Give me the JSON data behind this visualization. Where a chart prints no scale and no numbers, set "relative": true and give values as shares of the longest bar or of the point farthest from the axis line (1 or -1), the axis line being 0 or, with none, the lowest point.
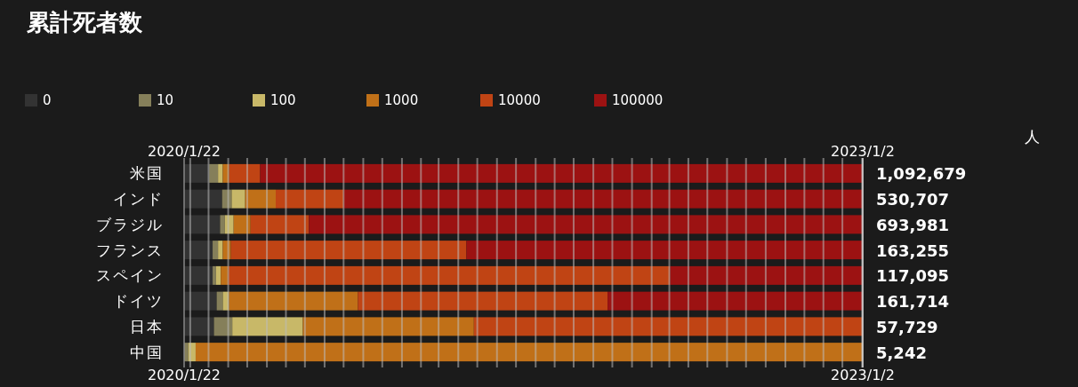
{
  "chart_data": {
    "type": "bar",
    "orientation": "horizontal",
    "stacked": true,
    "relative": true,
    "title": "累計死者数",
    "categories": [
      "米国",
      "インド",
      "ブラジル",
      "フランス",
      "スペイン",
      "ドイツ",
      "日本",
      "中国"
    ],
    "series": [
      {
        "name": "0",
        "color": "#333333",
        "values": [
          0.037,
          0.056,
          0.053,
          0.042,
          0.042,
          0.048,
          0.044,
          0
        ]
      },
      {
        "name": "10",
        "color": "#857f5a",
        "values": [
          0.013,
          0.014,
          0.007,
          0.008,
          0.005,
          0.009,
          0.027,
          0.006
        ]
      },
      {
        "name": "100",
        "color": "#c8b868",
        "values": [
          0.007,
          0.02,
          0.013,
          0.007,
          0.007,
          0.009,
          0.104,
          0.011
        ]
      },
      {
        "name": "1000",
        "color": "#c07018",
        "values": [
          0.009,
          0.045,
          0.025,
          0.012,
          0.011,
          0.19,
          0.252,
          0.983
        ]
      },
      {
        "name": "10000",
        "color": "#c04414",
        "values": [
          0.046,
          0.1,
          0.086,
          0.347,
          0.651,
          0.368,
          0.573,
          0
        ]
      },
      {
        "name": "100000",
        "color": "#9c1212",
        "values": [
          0.888,
          0.765,
          0.816,
          0.584,
          0.284,
          0.376,
          0,
          0
        ]
      }
    ],
    "annotations": [
      "1,092,679",
      "530,707",
      "693,981",
      "163,255",
      "117,095",
      "161,714",
      "57,729",
      "5,242",
      "人",
      "2020/1/22",
      "2023/1/2",
      "2020/1/22",
      "2023/1/2"
    ],
    "ref_lines": [
      {
        "axis": "x",
        "value": 0.009,
        "color": "#bbbbbb"
      },
      {
        "axis": "x",
        "value": 0.036,
        "color": "#bbbbbb"
      },
      {
        "axis": "x",
        "value": 0.065,
        "color": "#bbbbbb"
      },
      {
        "axis": "x",
        "value": 0.093,
        "color": "#bbbbbb"
      },
      {
        "axis": "x",
        "value": 0.122,
        "color": "#bbbbbb"
      },
      {
        "axis": "x",
        "value": 0.15,
        "color": "#bbbbbb"
      },
      {
        "axis": "x",
        "value": 0.178,
        "color": "#bbbbbb"
      },
      {
        "axis": "x",
        "value": 0.207,
        "color": "#bbbbbb"
      },
      {
        "axis": "x",
        "value": 0.235,
        "color": "#bbbbbb"
      },
      {
        "axis": "x",
        "value": 0.264,
        "color": "#bbbbbb"
      },
      {
        "axis": "x",
        "value": 0.292,
        "color": "#bbbbbb"
      },
      {
        "axis": "x",
        "value": 0.321,
        "color": "#bbbbbb"
      },
      {
        "axis": "x",
        "value": 0.349,
        "color": "#bbbbbb"
      },
      {
        "axis": "x",
        "value": 0.375,
        "color": "#bbbbbb"
      },
      {
        "axis": "x",
        "value": 0.404,
        "color": "#bbbbbb"
      },
      {
        "axis": "x",
        "value": 0.432,
        "color": "#bbbbbb"
      },
      {
        "axis": "x",
        "value": 0.461,
        "color": "#bbbbbb"
      },
      {
        "axis": "x",
        "value": 0.489,
        "color": "#bbbbbb"
      },
      {
        "axis": "x",
        "value": 0.518,
        "color": "#bbbbbb"
      },
      {
        "axis": "x",
        "value": 0.546,
        "color": "#bbbbbb"
      },
      {
        "axis": "x",
        "value": 0.574,
        "color": "#bbbbbb"
      },
      {
        "axis": "x",
        "value": 0.603,
        "color": "#bbbbbb"
      },
      {
        "axis": "x",
        "value": 0.631,
        "color": "#bbbbbb"
      },
      {
        "axis": "x",
        "value": 0.66,
        "color": "#bbbbbb"
      },
      {
        "axis": "x",
        "value": 0.689,
        "color": "#bbbbbb"
      },
      {
        "axis": "x",
        "value": 0.715,
        "color": "#bbbbbb"
      },
      {
        "axis": "x",
        "value": 0.743,
        "color": "#bbbbbb"
      },
      {
        "axis": "x",
        "value": 0.771,
        "color": "#bbbbbb"
      },
      {
        "axis": "x",
        "value": 0.8,
        "color": "#bbbbbb"
      },
      {
        "axis": "x",
        "value": 0.828,
        "color": "#bbbbbb"
      },
      {
        "axis": "x",
        "value": 0.857,
        "color": "#bbbbbb"
      },
      {
        "axis": "x",
        "value": 0.886,
        "color": "#bbbbbb"
      },
      {
        "axis": "x",
        "value": 0.914,
        "color": "#bbbbbb"
      },
      {
        "axis": "x",
        "value": 0.942,
        "color": "#bbbbbb"
      },
      {
        "axis": "x",
        "value": 0.97,
        "color": "#bbbbbb"
      },
      {
        "axis": "x",
        "value": 0.999,
        "color": "#bbbbbb"
      }
    ],
    "legend": "top left"
  }
}
